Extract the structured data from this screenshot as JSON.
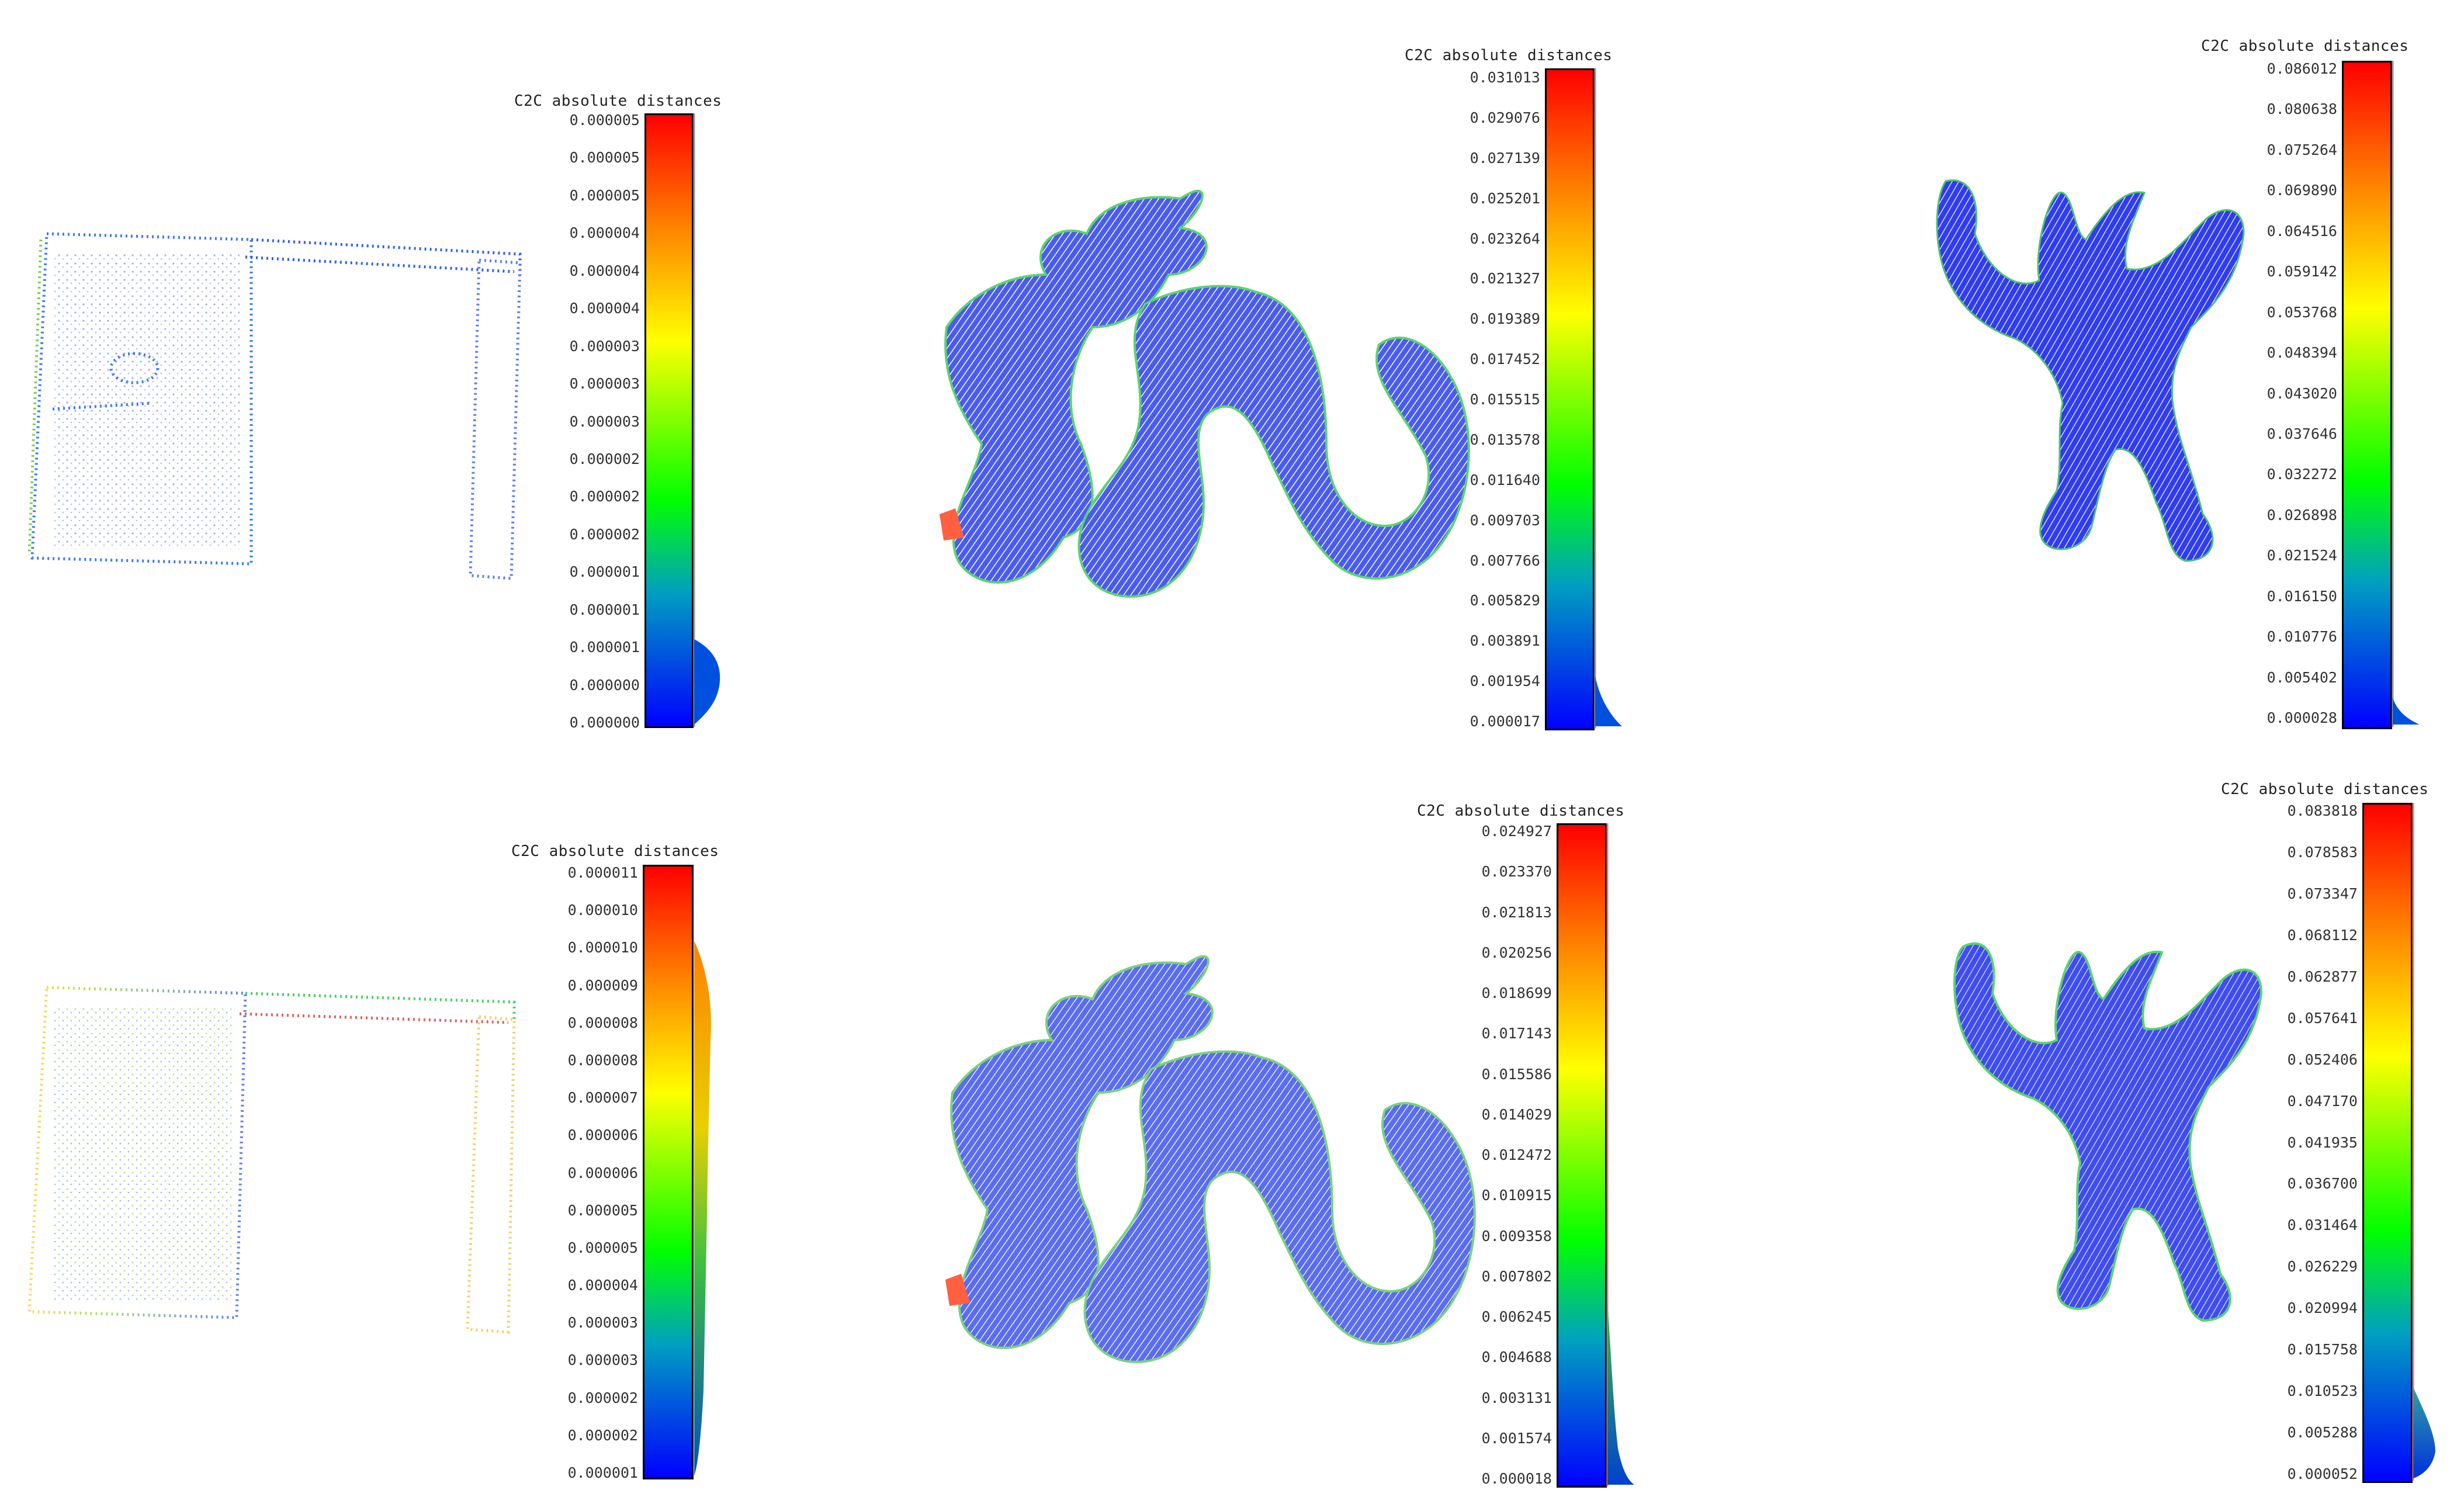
{
  "panels": [
    {
      "id": "wall-top",
      "cloud": "wall",
      "colorbar_title": "C2C absolute distances",
      "ticks": [
        "0.000005",
        "0.000005",
        "0.000005",
        "0.000004",
        "0.000004",
        "0.000004",
        "0.000003",
        "0.000003",
        "0.000003",
        "0.000002",
        "0.000002",
        "0.000002",
        "0.000001",
        "0.000001",
        "0.000001",
        "0.000000",
        "0.000000"
      ],
      "histogram": "low"
    },
    {
      "id": "dragon-top",
      "cloud": "dragon",
      "colorbar_title": "C2C absolute distances",
      "ticks": [
        "0.031013",
        "0.029076",
        "0.027139",
        "0.025201",
        "0.023264",
        "0.021327",
        "0.019389",
        "0.017452",
        "0.015515",
        "0.013578",
        "0.011640",
        "0.009703",
        "0.007766",
        "0.005829",
        "0.003891",
        "0.001954",
        "0.000017"
      ],
      "histogram": "bottom"
    },
    {
      "id": "armadillo-top",
      "cloud": "armadillo",
      "colorbar_title": "C2C absolute distances",
      "ticks": [
        "0.086012",
        "0.080638",
        "0.075264",
        "0.069890",
        "0.064516",
        "0.059142",
        "0.053768",
        "0.048394",
        "0.043020",
        "0.037646",
        "0.032272",
        "0.026898",
        "0.021524",
        "0.016150",
        "0.010776",
        "0.005402",
        "0.000028"
      ],
      "histogram": "bottom"
    },
    {
      "id": "wall-bottom",
      "cloud": "wall",
      "colorbar_title": "C2C absolute distances",
      "ticks": [
        "0.000011",
        "0.000010",
        "0.000010",
        "0.000009",
        "0.000008",
        "0.000008",
        "0.000007",
        "0.000006",
        "0.000006",
        "0.000005",
        "0.000005",
        "0.000004",
        "0.000003",
        "0.000003",
        "0.000002",
        "0.000002",
        "0.000001"
      ],
      "histogram": "spread"
    },
    {
      "id": "dragon-bottom",
      "cloud": "dragon",
      "colorbar_title": "C2C absolute distances",
      "ticks": [
        "0.024927",
        "0.023370",
        "0.021813",
        "0.020256",
        "0.018699",
        "0.017143",
        "0.015586",
        "0.014029",
        "0.012472",
        "0.010915",
        "0.009358",
        "0.007802",
        "0.006245",
        "0.004688",
        "0.003131",
        "0.001574",
        "0.000018"
      ],
      "histogram": "bottom-tall"
    },
    {
      "id": "armadillo-bottom",
      "cloud": "armadillo",
      "colorbar_title": "C2C absolute distances",
      "ticks": [
        "0.083818",
        "0.078583",
        "0.073347",
        "0.068112",
        "0.062877",
        "0.057641",
        "0.052406",
        "0.047170",
        "0.041935",
        "0.036700",
        "0.031464",
        "0.026229",
        "0.020994",
        "0.015758",
        "0.010523",
        "0.005288",
        "0.000052"
      ],
      "histogram": "bottom"
    }
  ]
}
